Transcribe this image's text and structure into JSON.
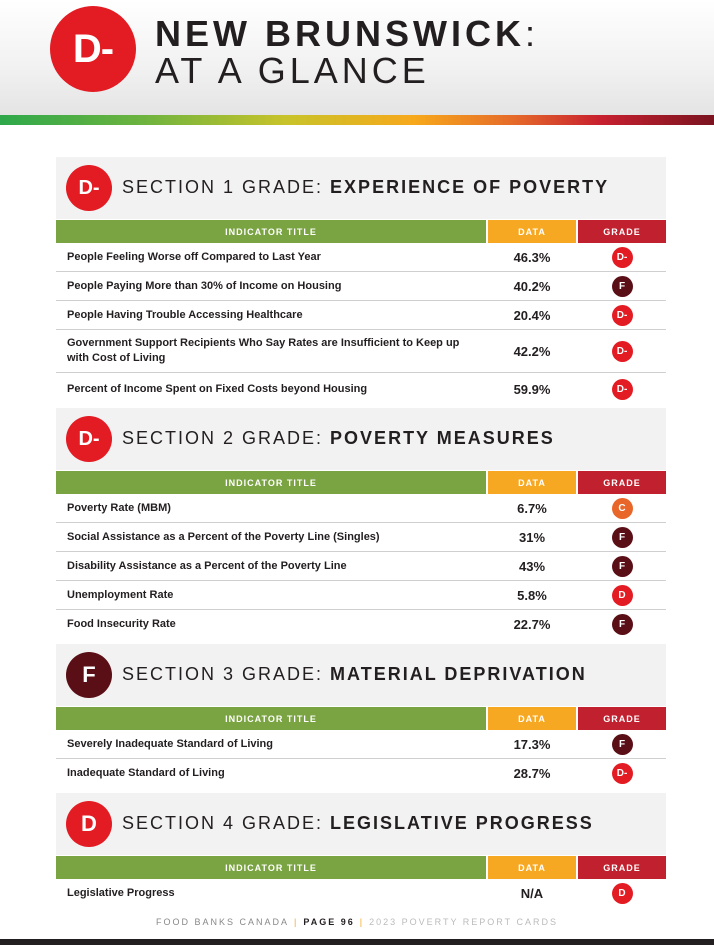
{
  "header": {
    "grade": "D-",
    "title_line1": "NEW BRUNSWICK",
    "title_colon": ":",
    "title_line2": "AT A GLANCE"
  },
  "colors": {
    "grade_d_minus": "#e31b23",
    "grade_d": "#e31b23",
    "grade_f": "#5a0f16",
    "grade_c": "#e8662a",
    "col_indicator": "#7aa342",
    "col_data": "#f7a823",
    "col_grade": "#c1202e"
  },
  "table_headers": {
    "indicator": "INDICATOR TITLE",
    "data": "DATA",
    "grade": "GRADE"
  },
  "sections": [
    {
      "grade": "D-",
      "label": "SECTION 1 GRADE: ",
      "name": "EXPERIENCE OF POVERTY",
      "rows": [
        {
          "indicator": "People Feeling Worse off Compared to Last Year",
          "data": "46.3%",
          "grade": "D-"
        },
        {
          "indicator": "People Paying More than 30% of Income on Housing",
          "data": "40.2%",
          "grade": "F"
        },
        {
          "indicator": "People Having Trouble Accessing Healthcare",
          "data": "20.4%",
          "grade": "D-"
        },
        {
          "indicator": "Government Support Recipients Who Say Rates are Insufficient to Keep up with Cost of Living",
          "data": "42.2%",
          "grade": "D-"
        },
        {
          "indicator": "Percent of Income Spent on Fixed Costs beyond Housing",
          "data": "59.9%",
          "grade": "D-"
        }
      ]
    },
    {
      "grade": "D-",
      "label": "SECTION 2 GRADE: ",
      "name": "POVERTY MEASURES",
      "rows": [
        {
          "indicator": "Poverty Rate (MBM)",
          "data": "6.7%",
          "grade": "C"
        },
        {
          "indicator": "Social Assistance as a Percent of the Poverty Line (Singles)",
          "data": "31%",
          "grade": "F"
        },
        {
          "indicator": "Disability Assistance as a Percent of the Poverty Line",
          "data": "43%",
          "grade": "F"
        },
        {
          "indicator": "Unemployment Rate",
          "data": "5.8%",
          "grade": "D"
        },
        {
          "indicator": "Food Insecurity Rate",
          "data": "22.7%",
          "grade": "F"
        }
      ]
    },
    {
      "grade": "F",
      "label": "SECTION 3 GRADE: ",
      "name": "MATERIAL DEPRIVATION",
      "rows": [
        {
          "indicator": "Severely Inadequate Standard of Living",
          "data": "17.3%",
          "grade": "F"
        },
        {
          "indicator": "Inadequate Standard of Living",
          "data": "28.7%",
          "grade": "D-"
        }
      ]
    },
    {
      "grade": "D",
      "label": "SECTION 4 GRADE: ",
      "name": "LEGISLATIVE PROGRESS",
      "rows": [
        {
          "indicator": "Legislative Progress",
          "data": "N/A",
          "grade": "D"
        }
      ]
    }
  ],
  "footer": {
    "org": "FOOD BANKS CANADA",
    "page": "PAGE 96",
    "report": "2023 POVERTY REPORT CARDS"
  }
}
